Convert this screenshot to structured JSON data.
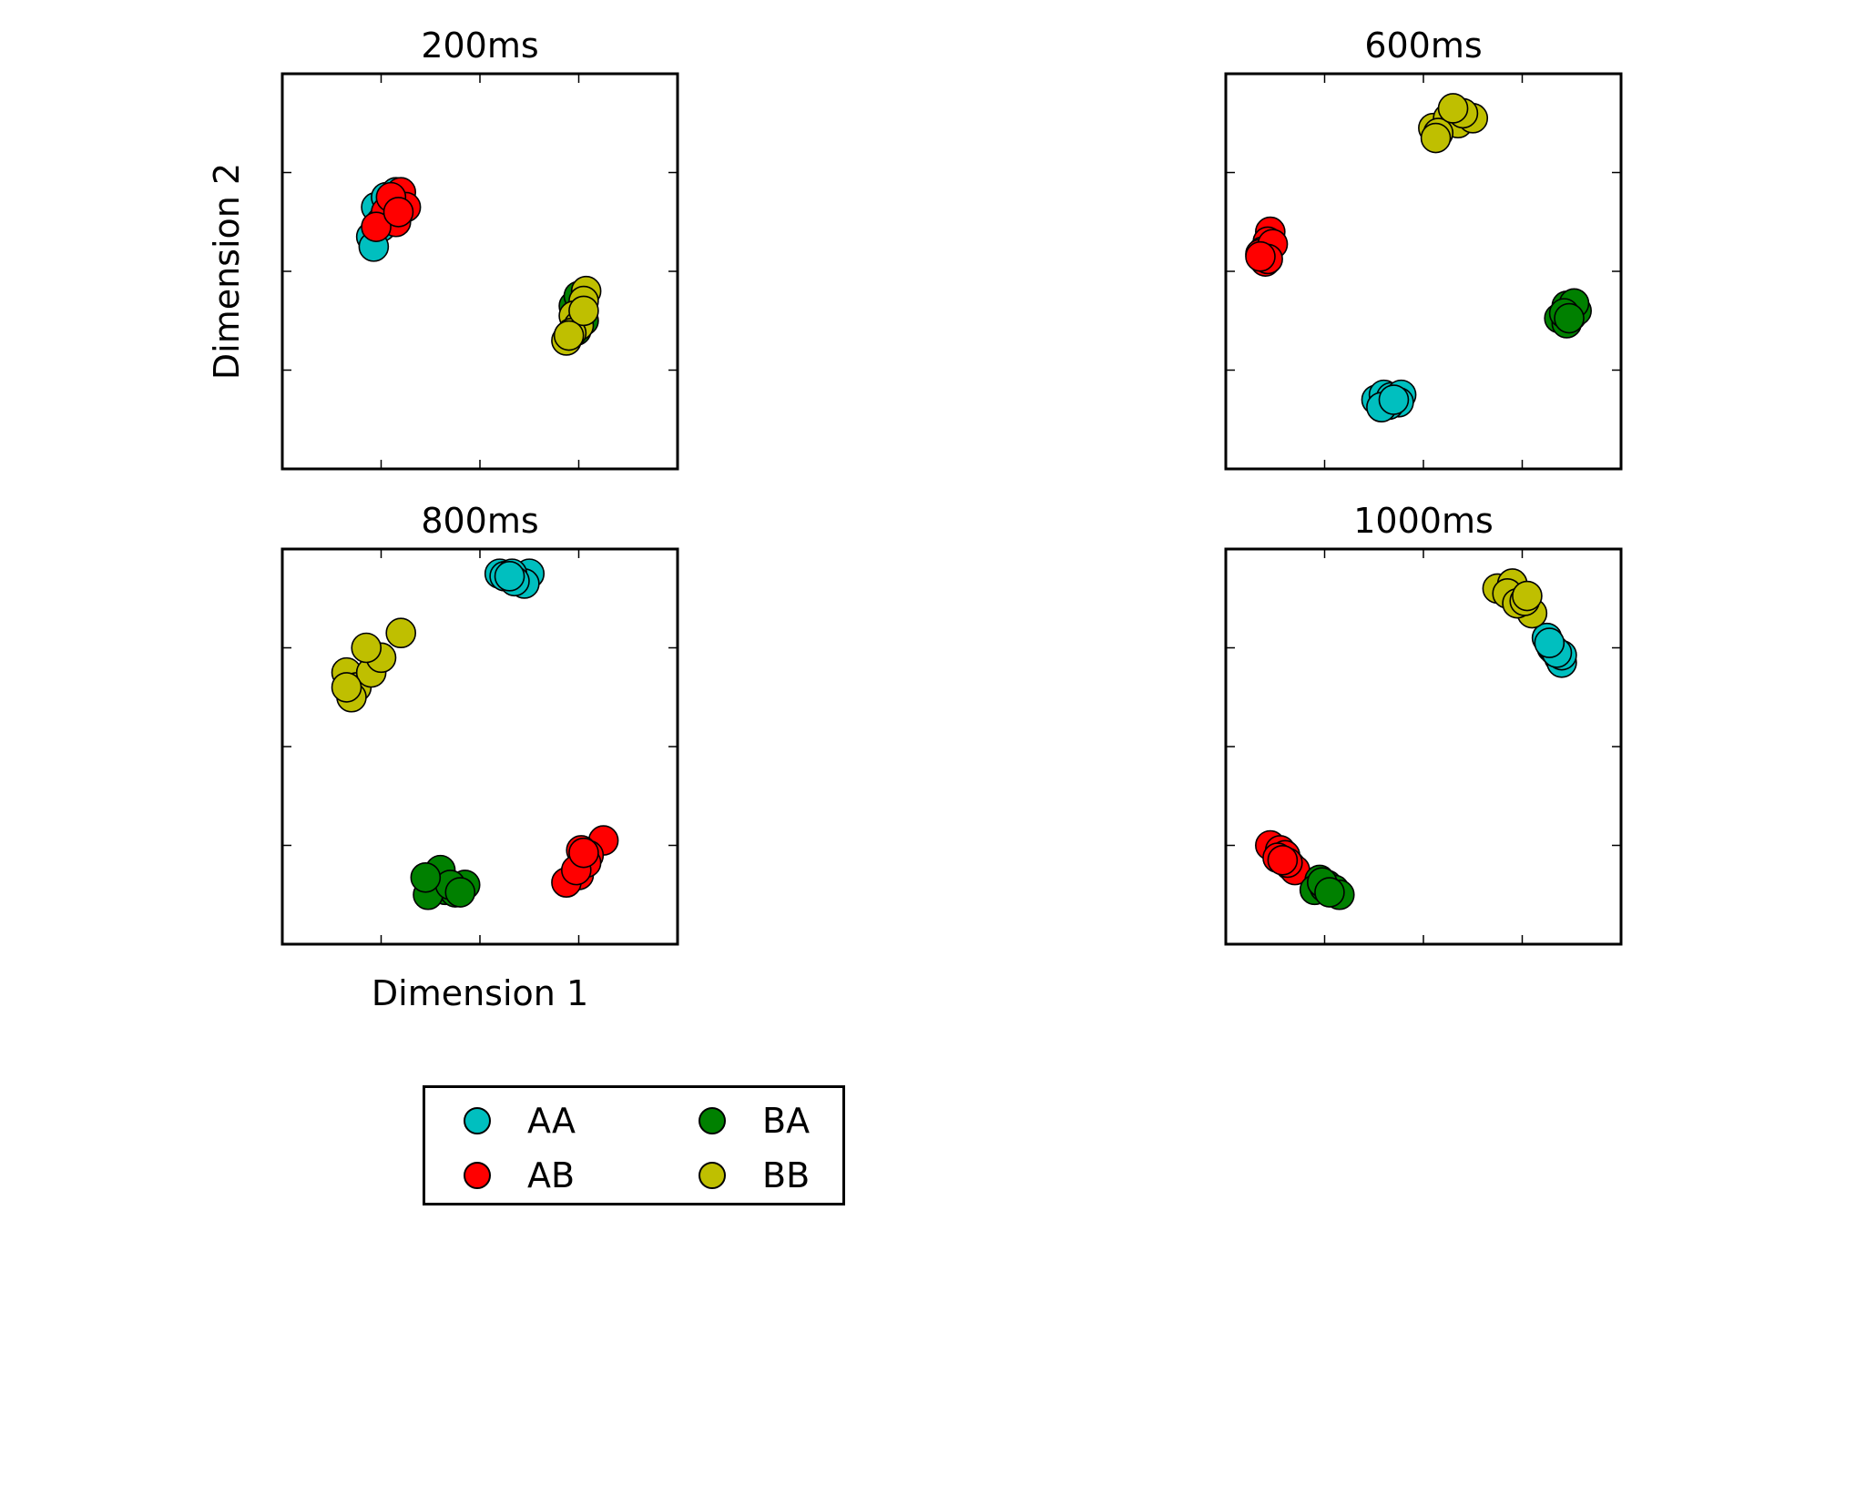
{
  "colors": {
    "AA": "#00bfbf",
    "AB": "#ff0000",
    "BA": "#008000",
    "BB": "#bfbf00"
  },
  "axis_labels": {
    "x": "Dimension 1",
    "y": "Dimension 2"
  },
  "legend": {
    "entries": [
      {
        "label": "AA",
        "color": "#00bfbf"
      },
      {
        "label": "AB",
        "color": "#ff0000"
      },
      {
        "label": "BA",
        "color": "#008000"
      },
      {
        "label": "BB",
        "color": "#bfbf00"
      }
    ],
    "columns": 2,
    "placement": "below"
  },
  "chart_data": [
    {
      "type": "scatter",
      "title": "200ms",
      "xlim": [
        0,
        8
      ],
      "ylim": [
        0,
        8
      ],
      "grid": false,
      "series": [
        {
          "name": "AA",
          "color": "#00bfbf",
          "points": [
            [
              1.8,
              4.7
            ],
            [
              2.0,
              4.9
            ],
            [
              2.2,
              5.1
            ],
            [
              1.9,
              5.3
            ],
            [
              2.1,
              5.5
            ],
            [
              2.3,
              5.6
            ],
            [
              2.0,
              5.0
            ],
            [
              1.85,
              4.5
            ]
          ]
        },
        {
          "name": "AB",
          "color": "#ff0000",
          "points": [
            [
              2.4,
              5.6
            ],
            [
              2.2,
              5.4
            ],
            [
              2.5,
              5.3
            ],
            [
              2.1,
              5.2
            ],
            [
              2.3,
              5.0
            ],
            [
              1.9,
              4.9
            ],
            [
              2.2,
              5.5
            ],
            [
              2.35,
              5.2
            ]
          ]
        },
        {
          "name": "BA",
          "color": "#008000",
          "points": [
            [
              5.9,
              3.3
            ],
            [
              6.0,
              3.5
            ],
            [
              6.1,
              3.0
            ],
            [
              5.8,
              2.7
            ],
            [
              6.05,
              3.15
            ],
            [
              5.95,
              2.8
            ]
          ]
        },
        {
          "name": "BB",
          "color": "#bfbf00",
          "points": [
            [
              6.15,
              3.6
            ],
            [
              6.1,
              3.4
            ],
            [
              5.9,
              3.1
            ],
            [
              6.0,
              2.9
            ],
            [
              5.75,
              2.6
            ],
            [
              5.85,
              2.75
            ],
            [
              6.1,
              3.2
            ],
            [
              5.8,
              2.7
            ]
          ]
        }
      ]
    },
    {
      "type": "scatter",
      "title": "600ms",
      "xlim": [
        0,
        8
      ],
      "ylim": [
        0,
        8
      ],
      "grid": false,
      "series": [
        {
          "name": "AA",
          "color": "#00bfbf",
          "points": [
            [
              3.05,
              1.4
            ],
            [
              3.2,
              1.5
            ],
            [
              3.35,
              1.45
            ],
            [
              3.55,
              1.5
            ],
            [
              3.5,
              1.35
            ],
            [
              3.3,
              1.3
            ],
            [
              3.15,
              1.25
            ],
            [
              3.4,
              1.4
            ]
          ]
        },
        {
          "name": "AB",
          "color": "#ff0000",
          "points": [
            [
              0.9,
              4.8
            ],
            [
              0.85,
              4.6
            ],
            [
              0.75,
              4.4
            ],
            [
              0.8,
              4.2
            ],
            [
              0.7,
              4.35
            ],
            [
              0.95,
              4.55
            ],
            [
              0.85,
              4.25
            ],
            [
              0.7,
              4.3
            ]
          ]
        },
        {
          "name": "BA",
          "color": "#008000",
          "points": [
            [
              6.9,
              3.3
            ],
            [
              7.0,
              3.1
            ],
            [
              7.1,
              3.2
            ],
            [
              6.75,
              3.05
            ],
            [
              6.9,
              2.95
            ],
            [
              7.05,
              3.35
            ],
            [
              6.85,
              3.15
            ],
            [
              6.95,
              3.05
            ]
          ]
        },
        {
          "name": "BB",
          "color": "#bfbf00",
          "points": [
            [
              4.2,
              6.9
            ],
            [
              4.5,
              7.1
            ],
            [
              4.7,
              7.0
            ],
            [
              5.0,
              7.1
            ],
            [
              4.8,
              7.2
            ],
            [
              4.3,
              6.8
            ],
            [
              4.6,
              7.3
            ],
            [
              4.25,
              6.7
            ]
          ]
        }
      ]
    },
    {
      "type": "scatter",
      "title": "800ms",
      "xlim": [
        0,
        8
      ],
      "ylim": [
        0,
        8
      ],
      "grid": false,
      "series": [
        {
          "name": "AA",
          "color": "#00bfbf",
          "points": [
            [
              4.4,
              7.5
            ],
            [
              4.8,
              7.4
            ],
            [
              5.0,
              7.5
            ],
            [
              4.9,
              7.3
            ],
            [
              4.5,
              7.45
            ],
            [
              4.65,
              7.5
            ],
            [
              4.7,
              7.35
            ],
            [
              4.6,
              7.45
            ]
          ]
        },
        {
          "name": "AB",
          "color": "#ff0000",
          "points": [
            [
              6.5,
              2.1
            ],
            [
              6.2,
              1.8
            ],
            [
              6.0,
              1.4
            ],
            [
              5.75,
              1.25
            ],
            [
              6.05,
              1.9
            ],
            [
              6.15,
              1.65
            ],
            [
              5.95,
              1.5
            ],
            [
              6.1,
              1.85
            ]
          ]
        },
        {
          "name": "BA",
          "color": "#008000",
          "points": [
            [
              3.2,
              1.5
            ],
            [
              3.3,
              1.1
            ],
            [
              3.7,
              1.2
            ],
            [
              3.5,
              1.05
            ],
            [
              2.95,
              1.0
            ],
            [
              3.4,
              1.2
            ],
            [
              2.9,
              1.35
            ],
            [
              3.6,
              1.05
            ]
          ]
        },
        {
          "name": "BB",
          "color": "#bfbf00",
          "points": [
            [
              1.3,
              5.5
            ],
            [
              1.5,
              5.2
            ],
            [
              1.8,
              5.5
            ],
            [
              2.0,
              5.8
            ],
            [
              1.7,
              6.0
            ],
            [
              2.4,
              6.3
            ],
            [
              1.4,
              5.0
            ],
            [
              1.3,
              5.2
            ]
          ]
        }
      ]
    },
    {
      "type": "scatter",
      "title": "1000ms",
      "xlim": [
        0,
        8
      ],
      "ylim": [
        0,
        8
      ],
      "grid": false,
      "series": [
        {
          "name": "AA",
          "color": "#00bfbf",
          "points": [
            [
              6.6,
              6.0
            ],
            [
              6.75,
              5.8
            ],
            [
              6.8,
              5.7
            ],
            [
              6.5,
              6.2
            ],
            [
              6.65,
              5.95
            ],
            [
              6.8,
              5.85
            ],
            [
              6.7,
              5.9
            ],
            [
              6.55,
              6.1
            ]
          ]
        },
        {
          "name": "AB",
          "color": "#ff0000",
          "points": [
            [
              0.9,
              2.0
            ],
            [
              1.1,
              1.9
            ],
            [
              1.3,
              1.6
            ],
            [
              1.2,
              1.8
            ],
            [
              1.4,
              1.5
            ],
            [
              1.05,
              1.75
            ],
            [
              1.25,
              1.65
            ],
            [
              1.15,
              1.7
            ]
          ]
        },
        {
          "name": "BA",
          "color": "#008000",
          "points": [
            [
              1.9,
              1.3
            ],
            [
              2.05,
              1.2
            ],
            [
              2.2,
              1.1
            ],
            [
              2.3,
              1.0
            ],
            [
              1.8,
              1.1
            ],
            [
              2.0,
              1.15
            ],
            [
              1.95,
              1.25
            ],
            [
              2.1,
              1.05
            ]
          ]
        },
        {
          "name": "BB",
          "color": "#bfbf00",
          "points": [
            [
              5.5,
              7.2
            ],
            [
              5.8,
              7.3
            ],
            [
              6.0,
              7.0
            ],
            [
              6.2,
              6.7
            ],
            [
              5.7,
              7.1
            ],
            [
              5.9,
              6.9
            ],
            [
              6.05,
              6.95
            ],
            [
              6.1,
              7.05
            ]
          ]
        }
      ]
    }
  ]
}
